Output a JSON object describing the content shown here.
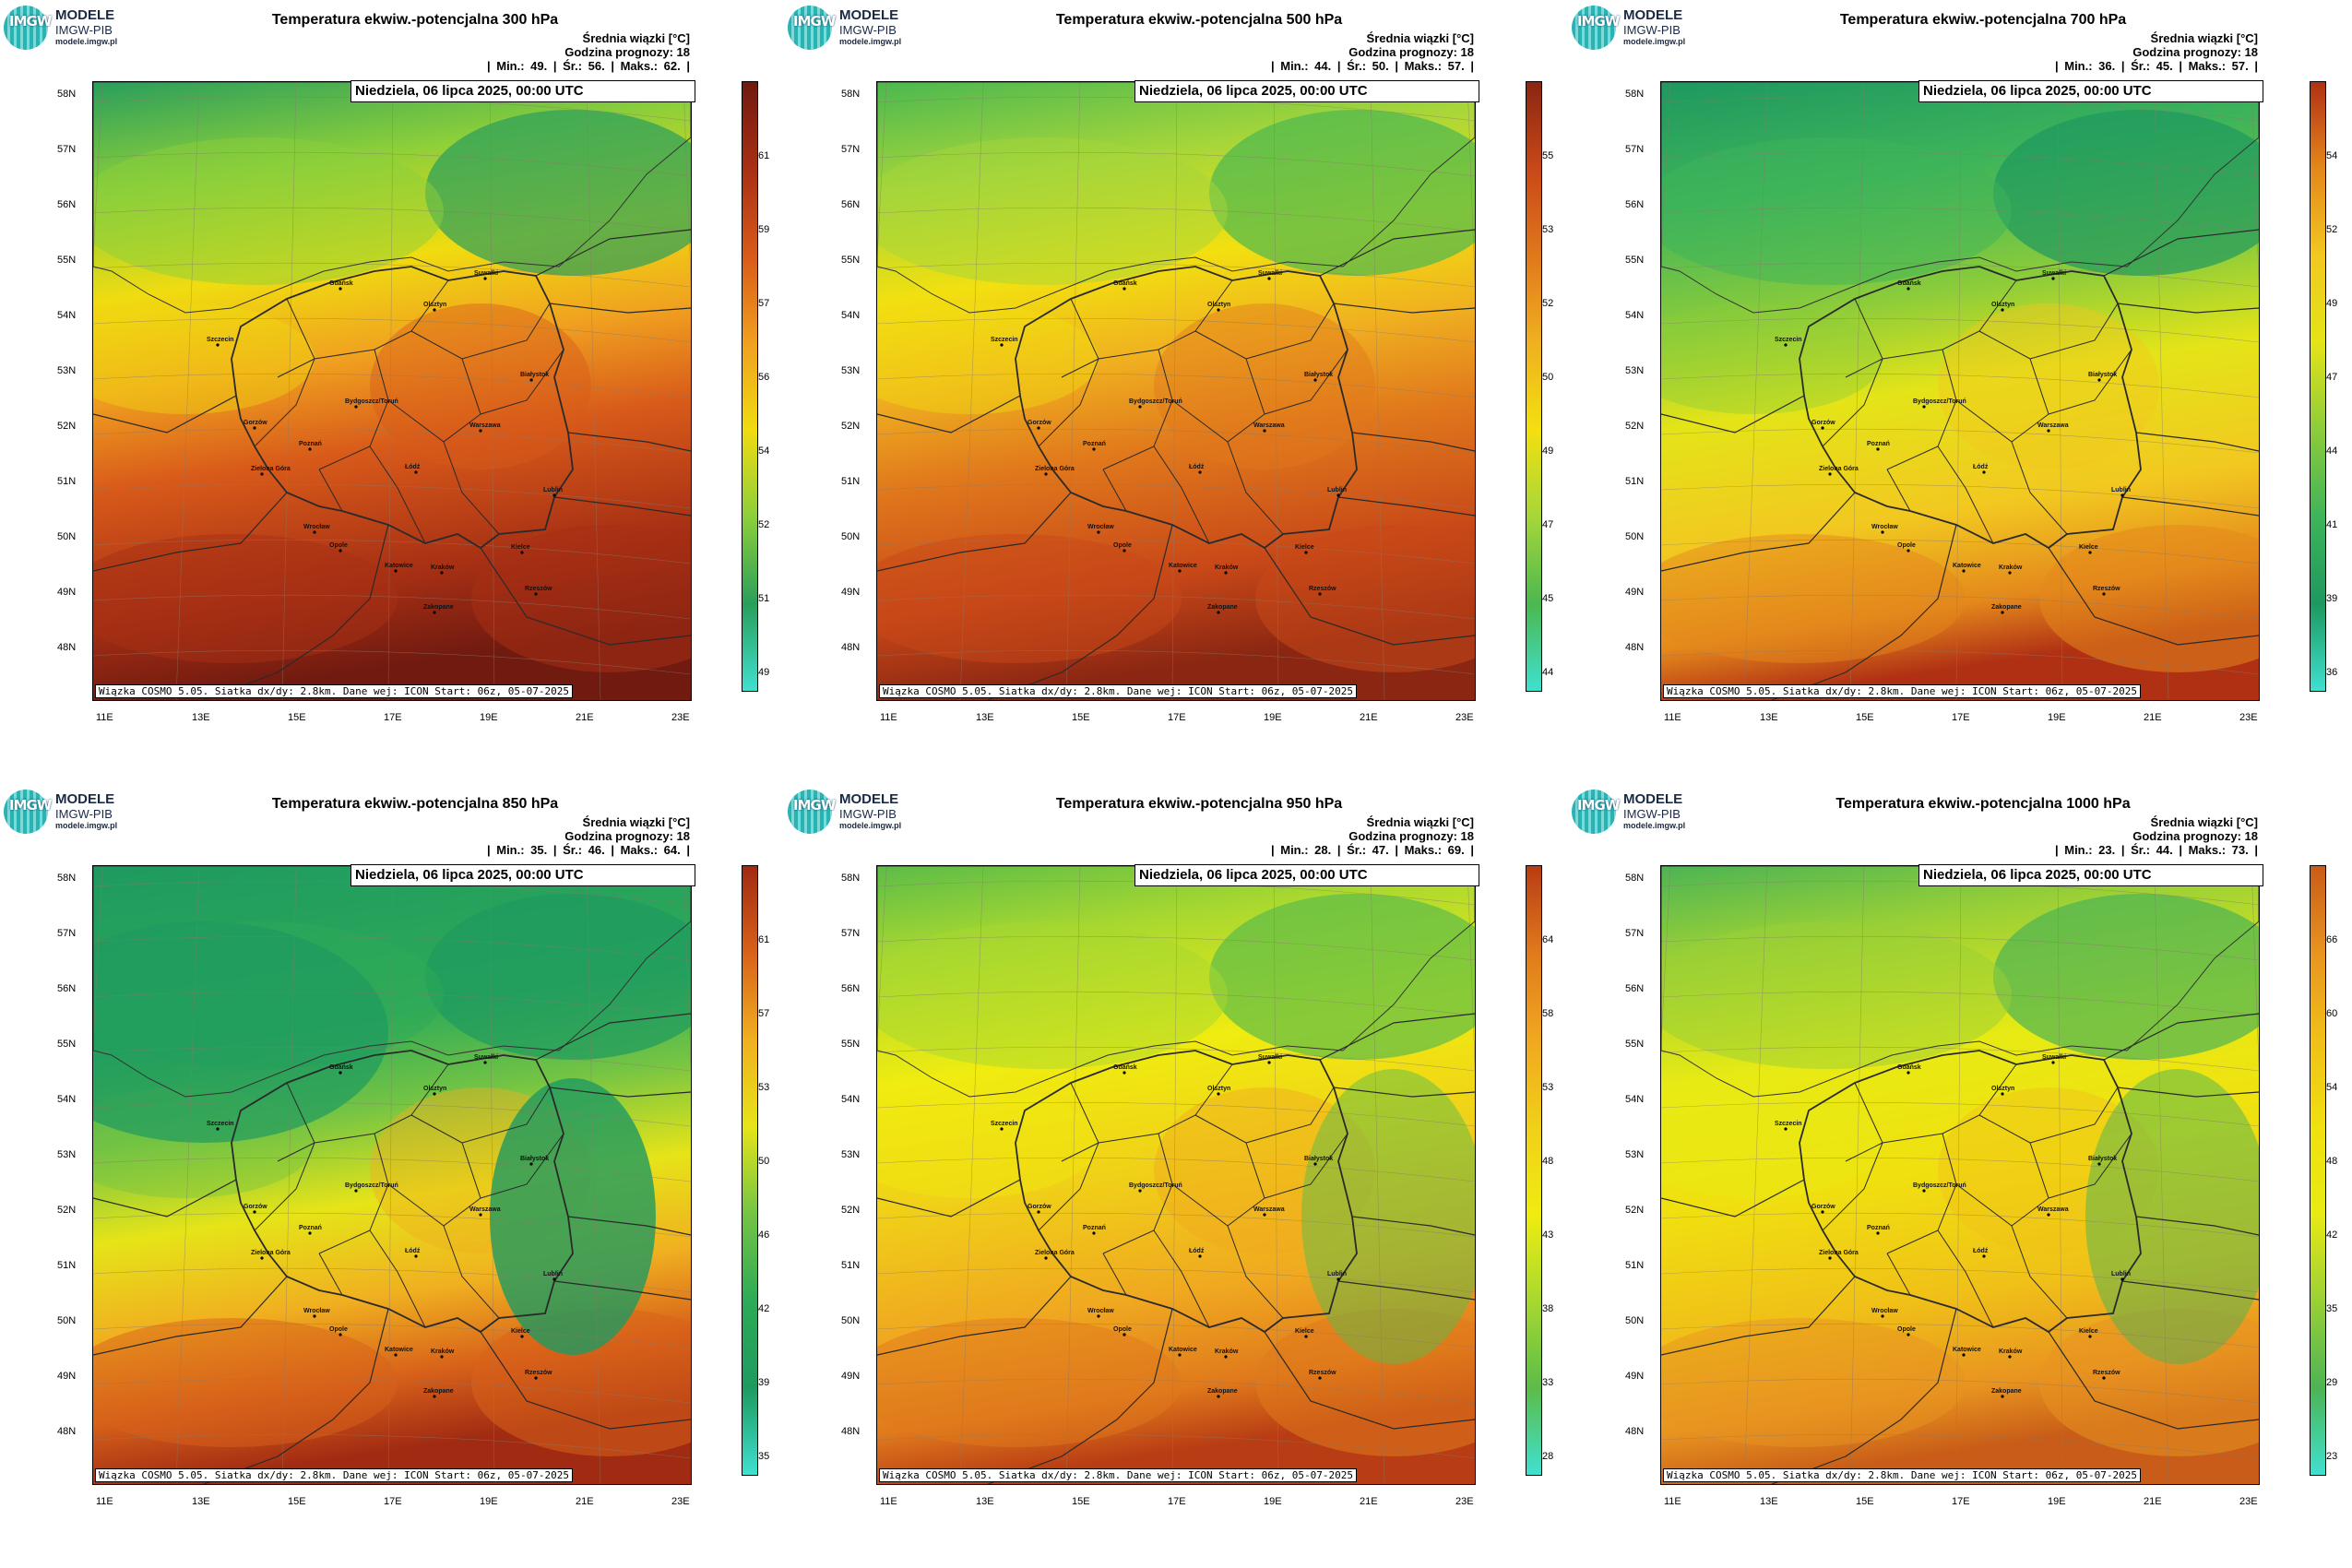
{
  "logo": {
    "line1": "MODELE",
    "line2": "IMGW-PIB",
    "line3": "modele.imgw.pl",
    "mark": "IMGW"
  },
  "common": {
    "stats_header": "Średnia wiązki [°C]",
    "forecast_hour": "Godzina prognozy: 18",
    "date": "Niedziela, 06 lipca 2025, 00:00 UTC",
    "footer": "Wiązka COSMO 5.05. Siatka dx/dy: 2.8km. Dane wej: ICON Start: 06z, 05-07-2025",
    "lat_labels": [
      "58N",
      "57N",
      "56N",
      "55N",
      "54N",
      "53N",
      "52N",
      "51N",
      "50N",
      "49N",
      "48N"
    ],
    "lon_labels": [
      "11E",
      "13E",
      "15E",
      "17E",
      "19E",
      "21E",
      "23E"
    ],
    "cities": [
      "Gdańsk",
      "Olsztyn",
      "Suwałki",
      "Szczecin",
      "Białystok",
      "Bydgoszcz/Toruń",
      "Gorzów",
      "Poznań",
      "Warszawa",
      "Zielona Góra",
      "Łódź",
      "Lublin",
      "Wrocław",
      "Opole",
      "Kielce",
      "Katowice",
      "Kraków",
      "Rzeszów",
      "Zakopane"
    ]
  },
  "panels": [
    {
      "title": "Temperatura ekwiw.-potencjalna 300 hPa",
      "min": "49.",
      "avg": "56.",
      "max": "62.",
      "colorbar_ticks": [
        "61",
        "59",
        "57",
        "56",
        "54",
        "52",
        "51",
        "49"
      ],
      "pattern": "warm",
      "colors": [
        "#2a9e5c",
        "#8ccf3a",
        "#f0dc10",
        "#f0a020",
        "#d85a1a",
        "#a83014",
        "#701a10"
      ]
    },
    {
      "title": "Temperatura ekwiw.-potencjalna 500 hPa",
      "min": "44.",
      "avg": "50.",
      "max": "57.",
      "colorbar_ticks": [
        "55",
        "53",
        "52",
        "50",
        "49",
        "47",
        "45",
        "44"
      ],
      "pattern": "warm",
      "colors": [
        "#4bb850",
        "#a6d63a",
        "#f2e010",
        "#f0b020",
        "#e0781c",
        "#c84818",
        "#8a2612"
      ]
    },
    {
      "title": "Temperatura ekwiw.-potencjalna 700 hPa",
      "min": "36.",
      "avg": "45.",
      "max": "57.",
      "colorbar_ticks": [
        "54",
        "52",
        "49",
        "47",
        "44",
        "41",
        "39",
        "36"
      ],
      "pattern": "mild",
      "colors": [
        "#1e9860",
        "#3eb45a",
        "#8ccc3a",
        "#e4e418",
        "#f2c820",
        "#e4881c",
        "#b03014"
      ]
    },
    {
      "title": "Temperatura ekwiw.-potencjalna 850 hPa",
      "min": "35.",
      "avg": "46.",
      "max": "64.",
      "colorbar_ticks": [
        "61",
        "57",
        "53",
        "50",
        "46",
        "42",
        "39",
        "35"
      ],
      "pattern": "mixed",
      "colors": [
        "#1e9a60",
        "#2eaa58",
        "#74c444",
        "#e6e418",
        "#f0b020",
        "#d8621a",
        "#a02a12"
      ]
    },
    {
      "title": "Temperatura ekwiw.-potencjalna 950 hPa",
      "min": "28.",
      "avg": "47.",
      "max": "69.",
      "colorbar_ticks": [
        "64",
        "58",
        "53",
        "48",
        "43",
        "38",
        "33",
        "28"
      ],
      "pattern": "yellow",
      "colors": [
        "#5cbc48",
        "#a8d830",
        "#f0ec10",
        "#f0d018",
        "#f0a820",
        "#e07a1c",
        "#b83c14"
      ]
    },
    {
      "title": "Temperatura ekwiw.-potencjalna 1000 hPa",
      "min": "23.",
      "avg": "44.",
      "max": "73.",
      "colorbar_ticks": [
        "66",
        "60",
        "54",
        "48",
        "42",
        "35",
        "29",
        "23"
      ],
      "pattern": "yellow",
      "colors": [
        "#4cb454",
        "#9ad036",
        "#e8ea14",
        "#f0e010",
        "#f0c018",
        "#e89420",
        "#c85c18"
      ]
    }
  ]
}
